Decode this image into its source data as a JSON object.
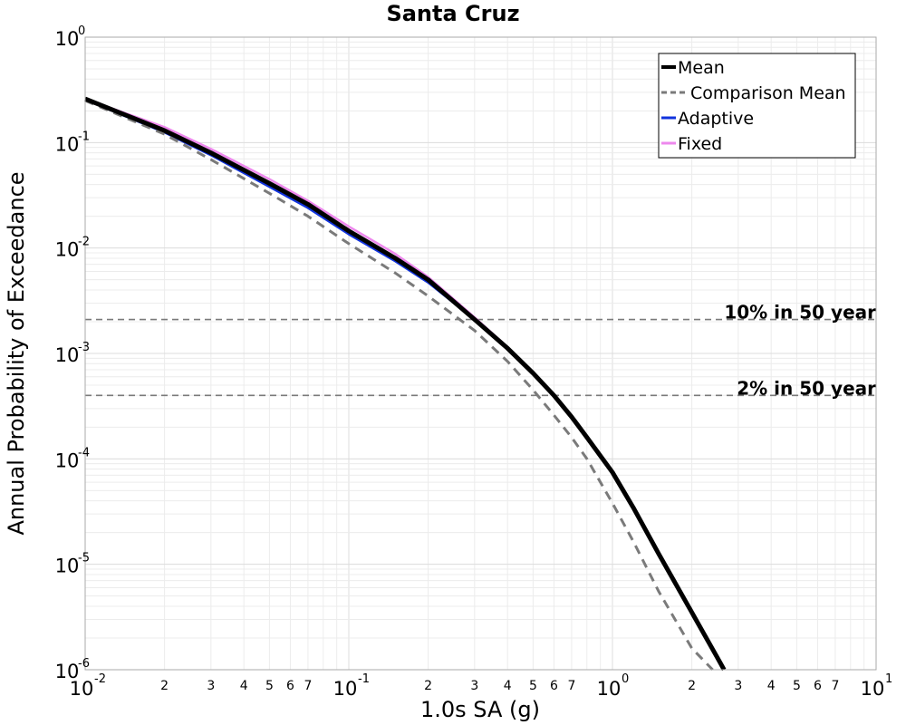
{
  "chart_data": {
    "type": "line",
    "title": "Santa Cruz",
    "xlabel": "1.0s SA (g)",
    "ylabel": "Annual Probability of Exceedance",
    "xscale": "log",
    "yscale": "log",
    "xlim": [
      0.01,
      10
    ],
    "ylim": [
      1e-06,
      1
    ],
    "grid": true,
    "legend_position": "top-right",
    "x_ticks": [
      {
        "base": "10",
        "exp": "-2",
        "value": 0.01
      },
      {
        "base": "10",
        "exp": "-1",
        "value": 0.1
      },
      {
        "base": "10",
        "exp": "0",
        "value": 1
      },
      {
        "base": "10",
        "exp": "1",
        "value": 10
      }
    ],
    "y_ticks": [
      {
        "base": "10",
        "exp": "0",
        "value": 1
      },
      {
        "base": "10",
        "exp": "-1",
        "value": 0.1
      },
      {
        "base": "10",
        "exp": "-2",
        "value": 0.01
      },
      {
        "base": "10",
        "exp": "-3",
        "value": 0.001
      },
      {
        "base": "10",
        "exp": "-4",
        "value": 0.0001
      },
      {
        "base": "10",
        "exp": "-5",
        "value": 1e-05
      },
      {
        "base": "10",
        "exp": "-6",
        "value": 1e-06
      }
    ],
    "x_minor_labels": [
      "2",
      "3",
      "4",
      "5",
      "6",
      "7"
    ],
    "reference_lines": [
      {
        "label": "10% in 50 year",
        "y": 0.0021
      },
      {
        "label": "2% in 50 year",
        "y": 0.0004
      }
    ],
    "series": [
      {
        "name": "Fixed",
        "color": "#ee88ee",
        "style": "solid",
        "width": 2.5,
        "x": [
          0.01,
          0.02,
          0.03,
          0.05,
          0.07,
          0.1,
          0.15,
          0.2,
          0.3,
          0.4,
          0.5,
          0.6,
          0.7,
          0.8,
          1.0
        ],
        "y": [
          0.26,
          0.14,
          0.087,
          0.045,
          0.028,
          0.016,
          0.0088,
          0.0053,
          0.0022,
          0.00115,
          0.00066,
          0.0004,
          0.00025,
          0.00016,
          7.45e-05
        ]
      },
      {
        "name": "Adaptive",
        "color": "#1133dd",
        "style": "solid",
        "width": 2.5,
        "x": [
          0.01,
          0.02,
          0.03,
          0.05,
          0.07,
          0.1,
          0.15,
          0.2,
          0.3,
          0.4,
          0.5,
          0.6,
          0.7,
          0.8,
          1.0
        ],
        "y": [
          0.255,
          0.125,
          0.076,
          0.038,
          0.024,
          0.0135,
          0.0075,
          0.0047,
          0.0021,
          0.00112,
          0.00065,
          0.0004,
          0.00025,
          0.00016,
          7.45e-05
        ]
      },
      {
        "name": "Comparison Mean",
        "color": "#7a7a7a",
        "style": "dashed",
        "width": 3,
        "x": [
          0.01,
          0.02,
          0.03,
          0.05,
          0.07,
          0.1,
          0.15,
          0.2,
          0.3,
          0.4,
          0.5,
          0.6,
          0.7,
          0.8,
          1.0,
          1.2,
          1.5,
          2.0,
          2.4
        ],
        "y": [
          0.25,
          0.12,
          0.069,
          0.033,
          0.02,
          0.011,
          0.0058,
          0.0035,
          0.00165,
          0.00084,
          0.00045,
          0.00026,
          0.00016,
          0.0001,
          3.8e-05,
          1.65e-05,
          5.5e-06,
          1.6e-06,
          1e-06
        ]
      },
      {
        "name": "Mean",
        "color": "#000000",
        "style": "solid",
        "width": 5,
        "x": [
          0.01,
          0.02,
          0.03,
          0.05,
          0.07,
          0.1,
          0.15,
          0.2,
          0.3,
          0.4,
          0.5,
          0.6,
          0.7,
          0.8,
          1.0,
          1.2,
          1.5,
          2.0,
          2.5,
          2.8
        ],
        "y": [
          0.26,
          0.13,
          0.08,
          0.041,
          0.026,
          0.0145,
          0.008,
          0.005,
          0.0021,
          0.00112,
          0.00065,
          0.0004,
          0.00025,
          0.00016,
          7.45e-05,
          3.45e-05,
          1.25e-05,
          3.5e-06,
          1.3e-06,
          7.8e-07
        ]
      }
    ],
    "legend": [
      {
        "label": "Mean",
        "color": "#000000",
        "style": "solid",
        "width": 4
      },
      {
        "label": "Comparison Mean",
        "color": "#7a7a7a",
        "style": "dashed",
        "width": 3
      },
      {
        "label": "Adaptive",
        "color": "#1133dd",
        "style": "solid",
        "width": 3
      },
      {
        "label": "Fixed",
        "color": "#ee88ee",
        "style": "solid",
        "width": 3
      }
    ]
  }
}
